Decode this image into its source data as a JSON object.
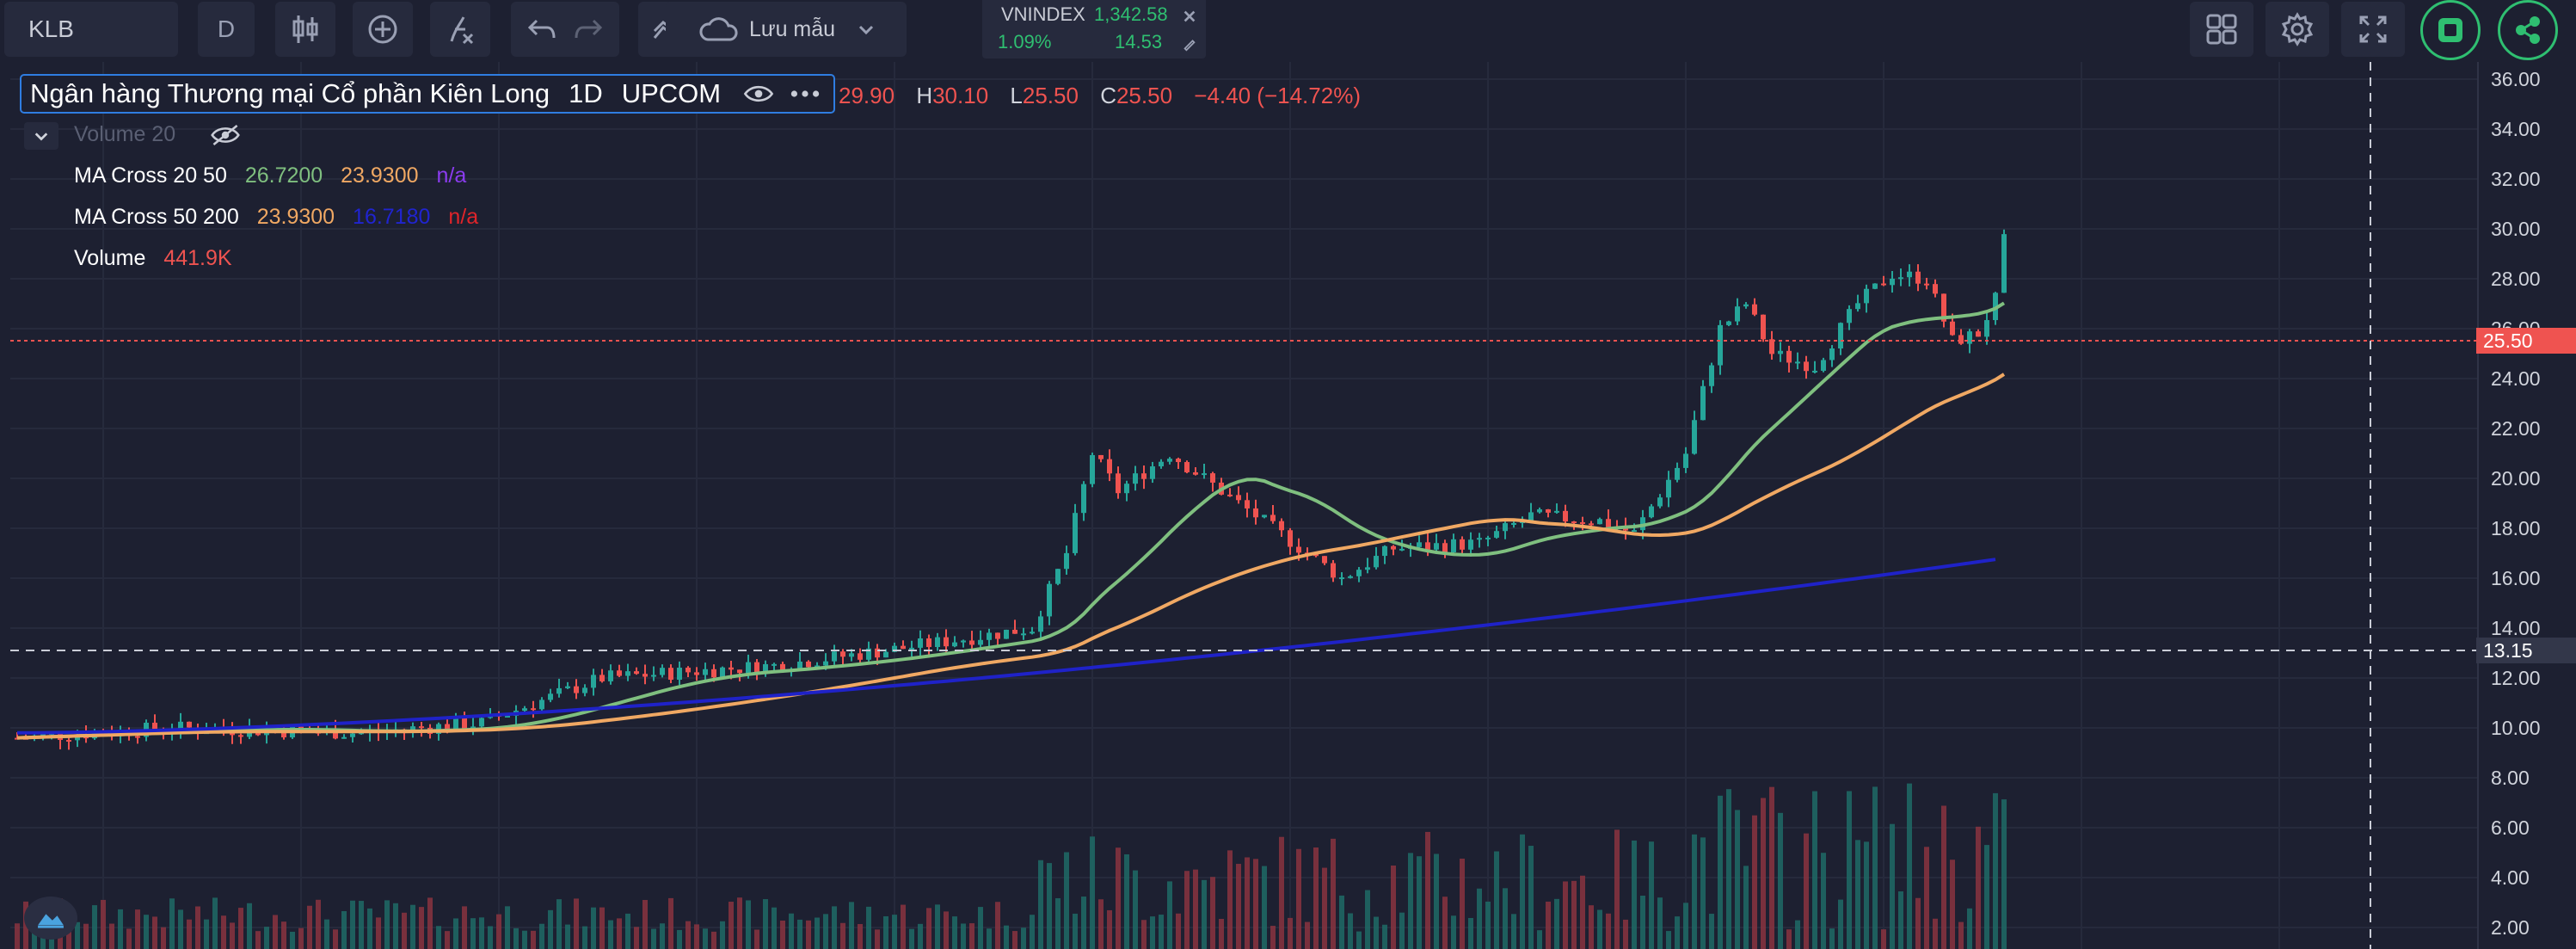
{
  "toolbar": {
    "symbol": "KLB",
    "interval": "D",
    "save_label": "Lưu mẫu",
    "icons": [
      "candles-icon",
      "add-indicator-icon",
      "indicators-icon",
      "undo-icon",
      "redo-icon",
      "drawing-icon",
      "cloud-icon",
      "chevron-down-icon",
      "layout-icon",
      "gear-icon",
      "fullscreen-icon",
      "record-icon",
      "share-icon"
    ]
  },
  "index_widget": {
    "name": "VNINDEX",
    "value": "1,342.58",
    "change_pct": "1.09%",
    "change": "14.53"
  },
  "legend": {
    "title": "Ngân hàng Thương mại Cổ phần Kiên Long",
    "interval": "1D",
    "exchange": "UPCOM",
    "open": "29.90",
    "high": "30.10",
    "low": "25.50",
    "close": "25.50",
    "change": "−4.40 (−14.72%)",
    "volume20_label": "Volume 20",
    "ma1": {
      "label": "MA Cross 20 50",
      "v1": "26.7200",
      "v2": "23.9300",
      "v3": "n/a"
    },
    "ma2": {
      "label": "MA Cross 50 200",
      "v1": "23.9300",
      "v2": "16.7180",
      "v3": "n/a"
    },
    "vol": {
      "label": "Volume",
      "v": "441.9K"
    }
  },
  "price_axis": {
    "ticks": [
      "36.00",
      "34.00",
      "32.00",
      "30.00",
      "28.00",
      "26.00",
      "24.00",
      "22.00",
      "20.00",
      "18.00",
      "16.00",
      "14.00",
      "12.00",
      "10.00",
      "8.00",
      "6.00",
      "4.00",
      "2.00"
    ],
    "last_price": "25.50",
    "crosshair_price": "13.15"
  },
  "colors": {
    "bg": "#1d2031",
    "up": "#26a69a",
    "down": "#ef5350",
    "ma20": "#7fbf7f",
    "ma50": "#f0a863",
    "ma200": "#1f22c8",
    "accent": "#2fbf71"
  },
  "chart_data": {
    "type": "candlestick",
    "series": [
      {
        "name": "MA Cross 20 50",
        "current": 26.72
      },
      {
        "name": "MA Cross 50 200",
        "current": 16.718
      },
      {
        "name": "Volume",
        "current": 441.9
      }
    ],
    "last_close": 25.5,
    "ylim": [
      0,
      37
    ]
  }
}
